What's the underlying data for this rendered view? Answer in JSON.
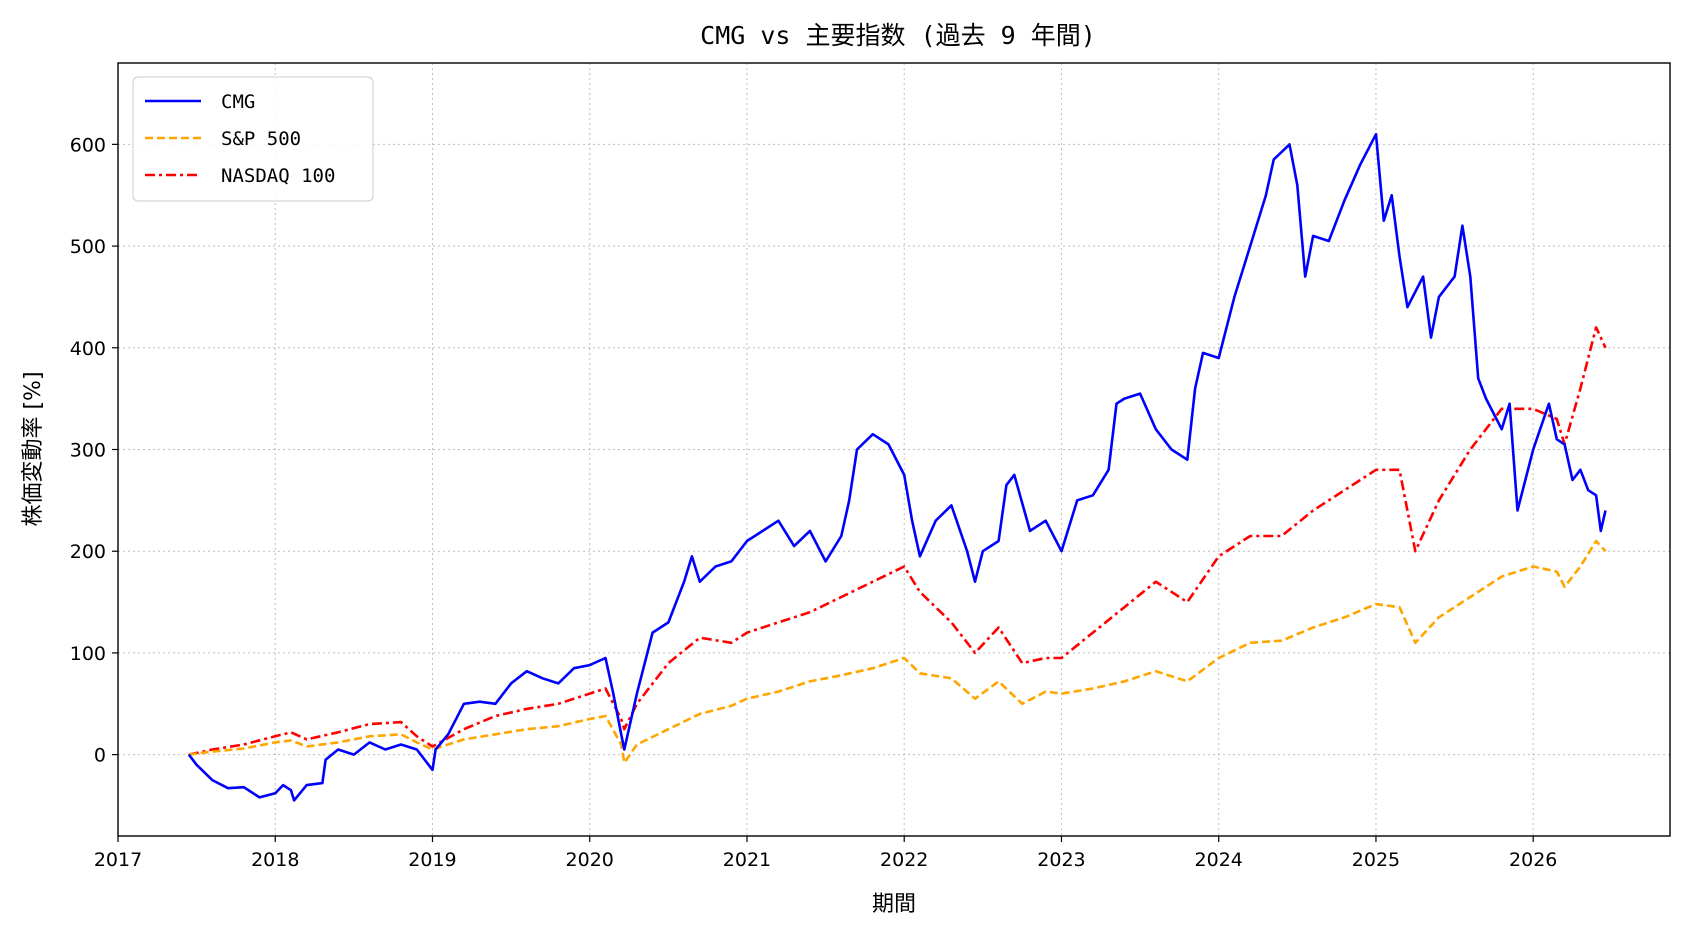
{
  "chart_data": {
    "type": "line",
    "title": "CMG vs 主要指数 (過去 9 年間)",
    "xlabel": "期間",
    "ylabel": "株価変動率 [%]",
    "xlim": [
      2017.0,
      2026.87
    ],
    "ylim": [
      -80,
      680
    ],
    "x_ticks": [
      2017,
      2018,
      2019,
      2020,
      2021,
      2022,
      2023,
      2024,
      2025,
      2026
    ],
    "y_ticks": [
      0,
      100,
      200,
      300,
      400,
      500,
      600
    ],
    "grid": true,
    "legend_position": "top-left",
    "series": [
      {
        "name": "CMG",
        "color": "#0000ff",
        "style": "solid",
        "points": [
          [
            2017.45,
            0
          ],
          [
            2017.5,
            -10
          ],
          [
            2017.6,
            -25
          ],
          [
            2017.7,
            -33
          ],
          [
            2017.8,
            -32
          ],
          [
            2017.9,
            -42
          ],
          [
            2018.0,
            -38
          ],
          [
            2018.05,
            -30
          ],
          [
            2018.1,
            -35
          ],
          [
            2018.12,
            -45
          ],
          [
            2018.2,
            -30
          ],
          [
            2018.3,
            -28
          ],
          [
            2018.32,
            -5
          ],
          [
            2018.4,
            5
          ],
          [
            2018.5,
            0
          ],
          [
            2018.6,
            12
          ],
          [
            2018.7,
            5
          ],
          [
            2018.8,
            10
          ],
          [
            2018.9,
            5
          ],
          [
            2019.0,
            -15
          ],
          [
            2019.02,
            5
          ],
          [
            2019.1,
            20
          ],
          [
            2019.2,
            50
          ],
          [
            2019.3,
            52
          ],
          [
            2019.4,
            50
          ],
          [
            2019.5,
            70
          ],
          [
            2019.6,
            82
          ],
          [
            2019.7,
            75
          ],
          [
            2019.8,
            70
          ],
          [
            2019.9,
            85
          ],
          [
            2020.0,
            88
          ],
          [
            2020.1,
            95
          ],
          [
            2020.15,
            60
          ],
          [
            2020.2,
            20
          ],
          [
            2020.22,
            5
          ],
          [
            2020.3,
            60
          ],
          [
            2020.4,
            120
          ],
          [
            2020.5,
            130
          ],
          [
            2020.6,
            170
          ],
          [
            2020.65,
            195
          ],
          [
            2020.7,
            170
          ],
          [
            2020.8,
            185
          ],
          [
            2020.9,
            190
          ],
          [
            2021.0,
            210
          ],
          [
            2021.1,
            220
          ],
          [
            2021.2,
            230
          ],
          [
            2021.3,
            205
          ],
          [
            2021.4,
            220
          ],
          [
            2021.5,
            190
          ],
          [
            2021.6,
            215
          ],
          [
            2021.65,
            250
          ],
          [
            2021.7,
            300
          ],
          [
            2021.8,
            315
          ],
          [
            2021.9,
            305
          ],
          [
            2022.0,
            275
          ],
          [
            2022.05,
            230
          ],
          [
            2022.1,
            195
          ],
          [
            2022.2,
            230
          ],
          [
            2022.3,
            245
          ],
          [
            2022.4,
            200
          ],
          [
            2022.45,
            170
          ],
          [
            2022.5,
            200
          ],
          [
            2022.6,
            210
          ],
          [
            2022.65,
            265
          ],
          [
            2022.7,
            275
          ],
          [
            2022.8,
            220
          ],
          [
            2022.9,
            230
          ],
          [
            2023.0,
            200
          ],
          [
            2023.1,
            250
          ],
          [
            2023.2,
            255
          ],
          [
            2023.3,
            280
          ],
          [
            2023.35,
            345
          ],
          [
            2023.4,
            350
          ],
          [
            2023.5,
            355
          ],
          [
            2023.6,
            320
          ],
          [
            2023.7,
            300
          ],
          [
            2023.8,
            290
          ],
          [
            2023.85,
            360
          ],
          [
            2023.9,
            395
          ],
          [
            2024.0,
            390
          ],
          [
            2024.1,
            450
          ],
          [
            2024.2,
            500
          ],
          [
            2024.3,
            550
          ],
          [
            2024.35,
            585
          ],
          [
            2024.45,
            600
          ],
          [
            2024.5,
            560
          ],
          [
            2024.55,
            470
          ],
          [
            2024.6,
            510
          ],
          [
            2024.7,
            505
          ],
          [
            2024.8,
            545
          ],
          [
            2024.9,
            580
          ],
          [
            2025.0,
            610
          ],
          [
            2025.05,
            525
          ],
          [
            2025.1,
            550
          ],
          [
            2025.15,
            490
          ],
          [
            2025.2,
            440
          ],
          [
            2025.3,
            470
          ],
          [
            2025.35,
            410
          ],
          [
            2025.4,
            450
          ],
          [
            2025.5,
            470
          ],
          [
            2025.55,
            520
          ],
          [
            2025.6,
            470
          ],
          [
            2025.65,
            370
          ],
          [
            2025.7,
            350
          ],
          [
            2025.8,
            320
          ],
          [
            2025.85,
            345
          ],
          [
            2025.9,
            240
          ],
          [
            2026.0,
            300
          ],
          [
            2026.1,
            345
          ],
          [
            2026.15,
            310
          ],
          [
            2026.2,
            305
          ],
          [
            2026.25,
            270
          ],
          [
            2026.3,
            280
          ],
          [
            2026.35,
            260
          ],
          [
            2026.4,
            255
          ],
          [
            2026.43,
            220
          ],
          [
            2026.46,
            240
          ]
        ]
      },
      {
        "name": "S&P 500",
        "color": "#ffa500",
        "style": "dashed",
        "points": [
          [
            2017.45,
            0
          ],
          [
            2017.6,
            3
          ],
          [
            2017.8,
            6
          ],
          [
            2018.0,
            12
          ],
          [
            2018.1,
            14
          ],
          [
            2018.2,
            8
          ],
          [
            2018.4,
            12
          ],
          [
            2018.6,
            18
          ],
          [
            2018.8,
            20
          ],
          [
            2018.9,
            12
          ],
          [
            2019.0,
            5
          ],
          [
            2019.2,
            15
          ],
          [
            2019.4,
            20
          ],
          [
            2019.6,
            25
          ],
          [
            2019.8,
            28
          ],
          [
            2020.0,
            35
          ],
          [
            2020.1,
            38
          ],
          [
            2020.2,
            10
          ],
          [
            2020.22,
            -8
          ],
          [
            2020.3,
            10
          ],
          [
            2020.5,
            25
          ],
          [
            2020.7,
            40
          ],
          [
            2020.9,
            48
          ],
          [
            2021.0,
            55
          ],
          [
            2021.2,
            62
          ],
          [
            2021.4,
            72
          ],
          [
            2021.6,
            78
          ],
          [
            2021.8,
            85
          ],
          [
            2022.0,
            95
          ],
          [
            2022.1,
            80
          ],
          [
            2022.3,
            75
          ],
          [
            2022.45,
            55
          ],
          [
            2022.6,
            72
          ],
          [
            2022.75,
            50
          ],
          [
            2022.9,
            62
          ],
          [
            2023.0,
            60
          ],
          [
            2023.2,
            65
          ],
          [
            2023.4,
            72
          ],
          [
            2023.6,
            82
          ],
          [
            2023.8,
            72
          ],
          [
            2024.0,
            95
          ],
          [
            2024.2,
            110
          ],
          [
            2024.4,
            112
          ],
          [
            2024.6,
            125
          ],
          [
            2024.8,
            135
          ],
          [
            2025.0,
            148
          ],
          [
            2025.15,
            145
          ],
          [
            2025.25,
            110
          ],
          [
            2025.4,
            135
          ],
          [
            2025.6,
            155
          ],
          [
            2025.8,
            175
          ],
          [
            2026.0,
            185
          ],
          [
            2026.15,
            180
          ],
          [
            2026.2,
            165
          ],
          [
            2026.3,
            185
          ],
          [
            2026.4,
            210
          ],
          [
            2026.46,
            200
          ]
        ]
      },
      {
        "name": "NASDAQ 100",
        "color": "#ff0000",
        "style": "dashdot",
        "points": [
          [
            2017.45,
            0
          ],
          [
            2017.6,
            5
          ],
          [
            2017.8,
            10
          ],
          [
            2018.0,
            18
          ],
          [
            2018.1,
            22
          ],
          [
            2018.2,
            15
          ],
          [
            2018.4,
            22
          ],
          [
            2018.6,
            30
          ],
          [
            2018.8,
            32
          ],
          [
            2018.9,
            18
          ],
          [
            2019.0,
            8
          ],
          [
            2019.2,
            25
          ],
          [
            2019.4,
            38
          ],
          [
            2019.6,
            45
          ],
          [
            2019.8,
            50
          ],
          [
            2020.0,
            60
          ],
          [
            2020.1,
            65
          ],
          [
            2020.2,
            35
          ],
          [
            2020.22,
            25
          ],
          [
            2020.3,
            50
          ],
          [
            2020.5,
            90
          ],
          [
            2020.7,
            115
          ],
          [
            2020.9,
            110
          ],
          [
            2021.0,
            120
          ],
          [
            2021.2,
            130
          ],
          [
            2021.4,
            140
          ],
          [
            2021.6,
            155
          ],
          [
            2021.8,
            170
          ],
          [
            2022.0,
            185
          ],
          [
            2022.1,
            160
          ],
          [
            2022.3,
            130
          ],
          [
            2022.45,
            100
          ],
          [
            2022.6,
            125
          ],
          [
            2022.75,
            90
          ],
          [
            2022.9,
            95
          ],
          [
            2023.0,
            95
          ],
          [
            2023.2,
            120
          ],
          [
            2023.4,
            145
          ],
          [
            2023.6,
            170
          ],
          [
            2023.8,
            150
          ],
          [
            2024.0,
            195
          ],
          [
            2024.2,
            215
          ],
          [
            2024.4,
            215
          ],
          [
            2024.6,
            240
          ],
          [
            2024.8,
            260
          ],
          [
            2025.0,
            280
          ],
          [
            2025.15,
            280
          ],
          [
            2025.25,
            200
          ],
          [
            2025.4,
            250
          ],
          [
            2025.6,
            300
          ],
          [
            2025.8,
            340
          ],
          [
            2026.0,
            340
          ],
          [
            2026.15,
            330
          ],
          [
            2026.2,
            305
          ],
          [
            2026.3,
            360
          ],
          [
            2026.4,
            420
          ],
          [
            2026.46,
            400
          ]
        ]
      }
    ]
  }
}
